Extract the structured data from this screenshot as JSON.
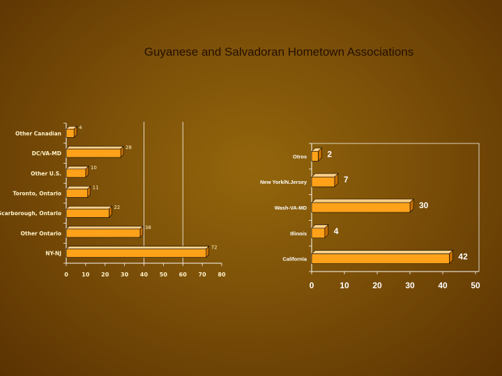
{
  "slide": {
    "title": "Guyanese and Salvadoran Hometown Associations"
  },
  "colors": {
    "bar_front": "#ffa21a",
    "bar_top": "#ffd088",
    "bar_side": "#c76f00",
    "axis": "#ffffff"
  },
  "chart_data": [
    {
      "type": "bar",
      "orientation": "horizontal",
      "title": "",
      "xlabel": "",
      "ylabel": "",
      "categories": [
        "Other Canadian",
        "DC/VA-MD",
        "Other U.S.",
        "Toronto, Ontario",
        "Scarborough, Ontario",
        "Other Ontario",
        "NY-NJ"
      ],
      "values": [
        4,
        28,
        10,
        11,
        22,
        38,
        72
      ],
      "xlim": [
        0,
        80
      ],
      "xticks": [
        0,
        10,
        20,
        30,
        40,
        50,
        60,
        70,
        80
      ],
      "gridlines": [
        40,
        60
      ],
      "grid": true,
      "data_labels": true
    },
    {
      "type": "bar",
      "orientation": "horizontal",
      "title": "",
      "xlabel": "",
      "ylabel": "",
      "categories": [
        "Otros",
        "New York/N.Jersey",
        "Wash-VA-MD",
        "Illinois",
        "California"
      ],
      "values": [
        2,
        7,
        30,
        4,
        42
      ],
      "xlim": [
        0,
        50
      ],
      "xticks": [
        0,
        10,
        20,
        30,
        40,
        50
      ],
      "grid": false,
      "data_labels": true
    }
  ]
}
